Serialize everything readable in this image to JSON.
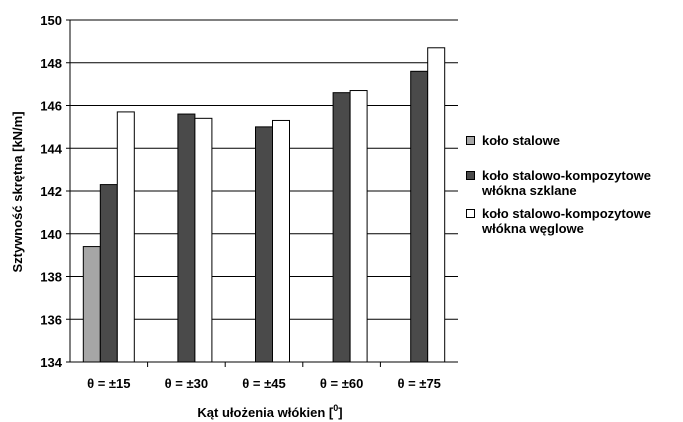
{
  "chart_data": {
    "type": "bar",
    "categories": [
      "θ = ±15",
      "θ = ±30",
      "θ = ±45",
      "θ = ±60",
      "θ = ±75"
    ],
    "series": [
      {
        "name": "koło stalowe",
        "values": [
          139.4,
          null,
          null,
          null,
          null
        ],
        "color": "#a6a6a6"
      },
      {
        "name": "koło stalowo-kompozytowe włókna szklane",
        "values": [
          142.3,
          145.6,
          145.0,
          146.6,
          147.6
        ],
        "color": "#4a4a4a"
      },
      {
        "name": "koło stalowo-kompozytowe włókna węglowe",
        "values": [
          145.7,
          145.4,
          145.3,
          146.7,
          148.7
        ],
        "color": "#ffffff"
      }
    ],
    "legend_labels": [
      [
        "koło stalowe"
      ],
      [
        "koło stalowo-kompozytowe",
        "włókna szklane"
      ],
      [
        "koło stalowo-kompozytowe",
        "włókna węglowe"
      ]
    ],
    "ylim": [
      134,
      150
    ],
    "yticks": [
      134,
      136,
      138,
      140,
      142,
      144,
      146,
      148,
      150
    ],
    "ylabel": "Sztywność skrętna [kN/m]",
    "xlabel_main": "Kąt ułożenia włókien [",
    "xlabel_sup": "0",
    "xlabel_end": "]",
    "legend_position": "right",
    "grid": true
  }
}
